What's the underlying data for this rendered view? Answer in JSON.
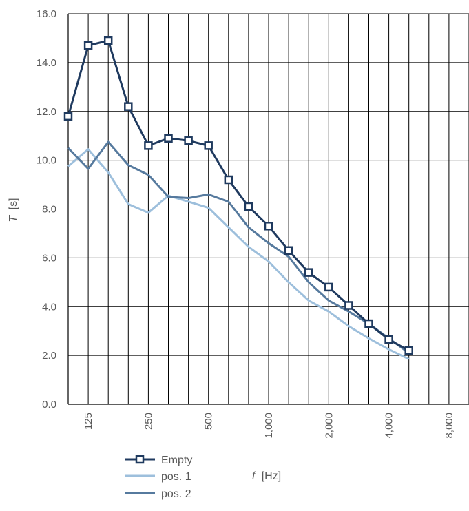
{
  "chart_data": {
    "type": "line",
    "xscale": "log",
    "xlabel_var": "f",
    "xlabel_unit": "[Hz]",
    "ylabel_var": "T",
    "ylabel_unit": "[s]",
    "ylim": [
      0,
      16
    ],
    "y_ticks": [
      "0.0",
      "2.0",
      "4.0",
      "6.0",
      "8.0",
      "10.0",
      "12.0",
      "14.0",
      "16.0"
    ],
    "x_tick_labels": [
      "125",
      "250",
      "500",
      "1,000",
      "2,000",
      "4,000",
      "8,000"
    ],
    "x": [
      100,
      125,
      160,
      200,
      250,
      315,
      400,
      500,
      630,
      800,
      1000,
      1250,
      1600,
      2000,
      2500,
      3150,
      4000,
      5000
    ],
    "grid": true,
    "legend_position": "bottom-left",
    "series": [
      {
        "name": "Empty",
        "color": "#1f3a5f",
        "marker": "square",
        "values": [
          11.8,
          14.7,
          14.9,
          12.2,
          10.6,
          10.9,
          10.8,
          10.6,
          9.2,
          8.1,
          7.3,
          6.3,
          5.4,
          4.8,
          4.05,
          3.3,
          2.65,
          2.2
        ]
      },
      {
        "name": "pos. 1",
        "color": "#9dbfdc",
        "marker": "none",
        "values": [
          9.75,
          10.45,
          9.5,
          8.2,
          7.85,
          8.55,
          8.3,
          8.05,
          7.25,
          6.45,
          5.85,
          5.0,
          4.25,
          3.8,
          3.2,
          2.7,
          2.25,
          1.85
        ]
      },
      {
        "name": "pos. 2",
        "color": "#567a9e",
        "marker": "none",
        "values": [
          10.5,
          9.65,
          10.75,
          9.8,
          9.4,
          8.5,
          8.45,
          8.6,
          8.3,
          7.25,
          6.6,
          6.05,
          5.0,
          4.25,
          3.8,
          3.3,
          2.7,
          2.1
        ]
      }
    ]
  }
}
